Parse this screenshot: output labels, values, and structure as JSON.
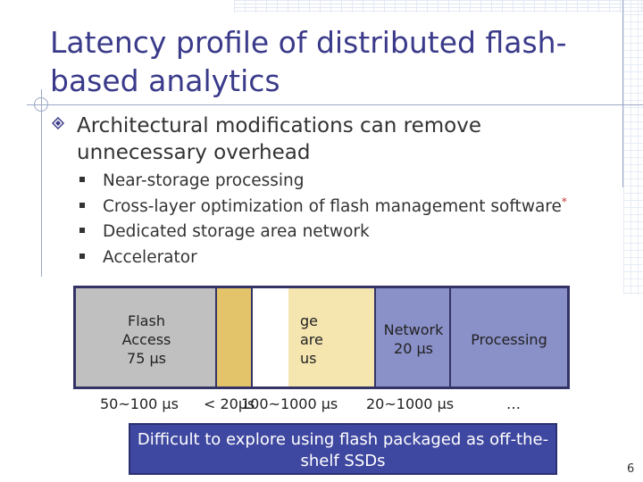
{
  "slide": {
    "title": "Latency profile of distributed flash-based analytics",
    "main_bullet": "Architectural modifications can remove unnecessary overhead",
    "sub_bullets": [
      {
        "text": "Near-storage processing",
        "footnote": ""
      },
      {
        "text": "Cross-layer optimization of flash management software",
        "footnote": "*"
      },
      {
        "text": "Dedicated storage area network",
        "footnote": ""
      },
      {
        "text": "Accelerator",
        "footnote": ""
      }
    ],
    "bar_segments": {
      "flash": {
        "line1": "Flash",
        "line2": "Access",
        "line3": "75 µs"
      },
      "software": {
        "line1": "ge",
        "line2": "are",
        "line3": "us"
      },
      "network": {
        "line1": "Network",
        "line2": "20 µs"
      },
      "processing": {
        "line1": "Processing"
      }
    },
    "time_ranges": {
      "flash": "50~100 µs",
      "ftl": "< 20µs",
      "software": "100~1000 µs",
      "network": "20~1000 µs",
      "processing": "…"
    },
    "banner": "Difficult to explore using flash packaged as off-the-shelf SSDs",
    "page_number": "6",
    "colors": {
      "title": "#3a3a8a",
      "flash_segment": "#c0c0c0",
      "ftl_segment": "#e3c46a",
      "software_segment": "#f5e6b0",
      "network_segment": "#8a90c8",
      "banner_bg": "#3f48a0"
    }
  }
}
